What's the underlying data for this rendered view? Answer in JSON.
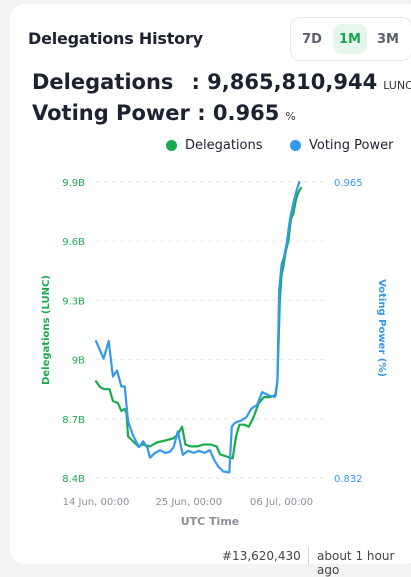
{
  "card": {
    "title": "Delegations History",
    "ranges": [
      "7D",
      "1M",
      "3M"
    ],
    "active_range": "1M",
    "delegations_label": "Delegations",
    "delegations_value": ": 9,865,810,944",
    "delegations_unit": "LUNC",
    "voting_label": "Voting Power :",
    "voting_value": "0.965",
    "voting_unit": "%"
  },
  "colors": {
    "delegations": "#1bab4f",
    "voting_power": "#3399f0"
  },
  "chart_data": {
    "type": "line",
    "legend": [
      "Delegations",
      "Voting Power"
    ],
    "legend_position": "top-right",
    "xlabel": "UTC Time",
    "x_tick_labels": [
      "14 Jun, 00:00",
      "25 Jun, 00:00",
      "06 Jul, 00:00"
    ],
    "x_ticks_days": [
      0,
      11,
      22
    ],
    "x_range_days": [
      0,
      27.5
    ],
    "y_left": {
      "label": "Delegations (LUNC)",
      "ticks": [
        8.4,
        8.7,
        9.0,
        9.3,
        9.6,
        9.9
      ],
      "tick_labels": [
        "8.4B",
        "8.7B",
        "9B",
        "9.3B",
        "9.6B",
        "9.9B"
      ],
      "range": [
        8.4,
        9.9
      ],
      "unit": "B"
    },
    "y_right": {
      "label": "Voting Power (%)",
      "tick_labels": [
        "0.832",
        "0.965"
      ],
      "range": [
        0.832,
        0.965
      ]
    },
    "grid": "horizontal-dashed",
    "series": [
      {
        "name": "Delegations",
        "axis": "left",
        "points": [
          [
            0.0,
            8.89
          ],
          [
            0.5,
            8.86
          ],
          [
            1.0,
            8.85
          ],
          [
            1.6,
            8.85
          ],
          [
            2.0,
            8.79
          ],
          [
            2.6,
            8.78
          ],
          [
            3.0,
            8.74
          ],
          [
            3.4,
            8.75
          ],
          [
            3.6,
            8.73
          ],
          [
            3.8,
            8.61
          ],
          [
            4.3,
            8.59
          ],
          [
            5.0,
            8.56
          ],
          [
            5.6,
            8.57
          ],
          [
            6.4,
            8.56
          ],
          [
            7.2,
            8.58
          ],
          [
            8.2,
            8.59
          ],
          [
            9.1,
            8.6
          ],
          [
            9.7,
            8.62
          ],
          [
            10.2,
            8.66
          ],
          [
            10.6,
            8.57
          ],
          [
            11.2,
            8.56
          ],
          [
            12.0,
            8.56
          ],
          [
            12.8,
            8.57
          ],
          [
            13.6,
            8.57
          ],
          [
            14.3,
            8.56
          ],
          [
            14.7,
            8.52
          ],
          [
            15.4,
            8.51
          ],
          [
            16.2,
            8.5
          ],
          [
            16.6,
            8.61
          ],
          [
            17.0,
            8.67
          ],
          [
            17.6,
            8.67
          ],
          [
            18.1,
            8.66
          ],
          [
            18.6,
            8.7
          ],
          [
            19.3,
            8.78
          ],
          [
            19.9,
            8.81
          ],
          [
            20.6,
            8.81
          ],
          [
            21.3,
            8.82
          ],
          [
            21.5,
            8.89
          ],
          [
            21.8,
            9.31
          ],
          [
            22.0,
            9.43
          ],
          [
            22.2,
            9.47
          ],
          [
            22.5,
            9.55
          ],
          [
            22.8,
            9.6
          ],
          [
            23.1,
            9.71
          ],
          [
            23.4,
            9.74
          ],
          [
            23.7,
            9.81
          ],
          [
            24.0,
            9.85
          ],
          [
            24.3,
            9.87
          ]
        ]
      },
      {
        "name": "Voting Power",
        "axis": "right",
        "points": [
          [
            0.0,
            0.8935
          ],
          [
            0.4,
            0.89
          ],
          [
            0.9,
            0.8856
          ],
          [
            1.5,
            0.8935
          ],
          [
            2.0,
            0.8776
          ],
          [
            2.5,
            0.8803
          ],
          [
            3.0,
            0.8731
          ],
          [
            3.4,
            0.8732
          ],
          [
            3.8,
            0.8574
          ],
          [
            4.4,
            0.8511
          ],
          [
            5.1,
            0.8459
          ],
          [
            5.6,
            0.8485
          ],
          [
            6.1,
            0.8455
          ],
          [
            6.4,
            0.8411
          ],
          [
            7.0,
            0.8433
          ],
          [
            7.6,
            0.8445
          ],
          [
            8.2,
            0.8433
          ],
          [
            8.8,
            0.8438
          ],
          [
            9.2,
            0.8459
          ],
          [
            9.7,
            0.8529
          ],
          [
            10.3,
            0.8424
          ],
          [
            10.9,
            0.8442
          ],
          [
            11.6,
            0.8433
          ],
          [
            12.2,
            0.8442
          ],
          [
            12.9,
            0.8433
          ],
          [
            13.5,
            0.8446
          ],
          [
            14.0,
            0.8402
          ],
          [
            14.5,
            0.8371
          ],
          [
            15.1,
            0.8349
          ],
          [
            15.8,
            0.8345
          ],
          [
            16.1,
            0.8551
          ],
          [
            16.5,
            0.8569
          ],
          [
            17.2,
            0.8578
          ],
          [
            17.8,
            0.8592
          ],
          [
            18.4,
            0.8631
          ],
          [
            19.1,
            0.8649
          ],
          [
            19.7,
            0.8706
          ],
          [
            20.6,
            0.8689
          ],
          [
            21.2,
            0.8685
          ],
          [
            21.5,
            0.875
          ],
          [
            21.7,
            0.9164
          ],
          [
            22.0,
            0.928
          ],
          [
            22.3,
            0.9314
          ],
          [
            22.6,
            0.9376
          ],
          [
            23.0,
            0.9482
          ],
          [
            23.4,
            0.9558
          ],
          [
            23.8,
            0.9615
          ],
          [
            24.1,
            0.965
          ]
        ]
      }
    ]
  },
  "footer": {
    "block": "#13,620,430",
    "time": "about 1 hour ago"
  }
}
